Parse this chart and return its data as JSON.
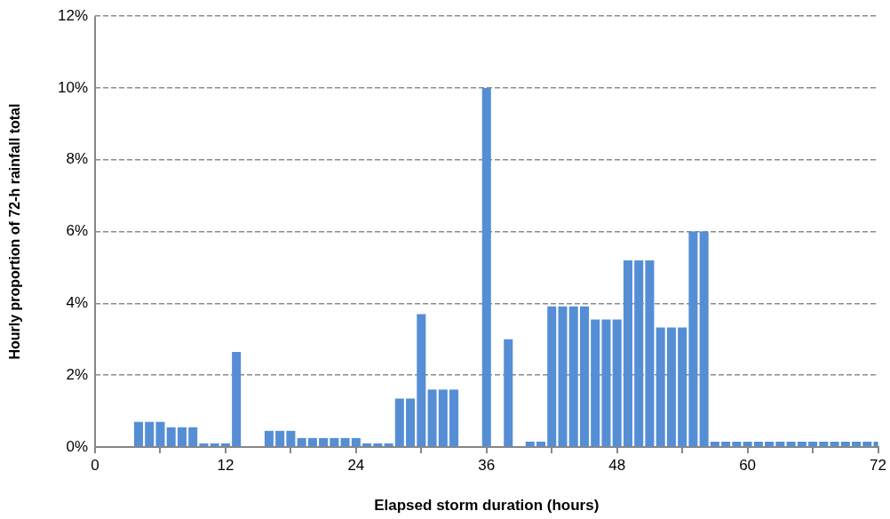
{
  "chart_data": {
    "type": "bar",
    "xlabel": "Elapsed storm duration (hours)",
    "ylabel": "Hourly proportion of 72-h rainfall total",
    "x": [
      1,
      2,
      3,
      4,
      5,
      6,
      7,
      8,
      9,
      10,
      11,
      12,
      13,
      14,
      15,
      16,
      17,
      18,
      19,
      20,
      21,
      22,
      23,
      24,
      25,
      26,
      27,
      28,
      29,
      30,
      31,
      32,
      33,
      34,
      35,
      36,
      37,
      38,
      39,
      40,
      41,
      42,
      43,
      44,
      45,
      46,
      47,
      48,
      49,
      50,
      51,
      52,
      53,
      54,
      55,
      56,
      57,
      58,
      59,
      60,
      61,
      62,
      63,
      64,
      65,
      66,
      67,
      68,
      69,
      70,
      71,
      72
    ],
    "values": [
      0,
      0,
      0,
      0.7,
      0.7,
      0.7,
      0.55,
      0.55,
      0.55,
      0.1,
      0.1,
      0.1,
      2.65,
      0,
      0,
      0.45,
      0.45,
      0.45,
      0.25,
      0.25,
      0.25,
      0.25,
      0.25,
      0.25,
      0.1,
      0.1,
      0.1,
      1.35,
      1.35,
      3.7,
      1.6,
      1.6,
      1.6,
      0,
      0,
      10,
      0,
      3,
      0,
      0.15,
      0.15,
      3.92,
      3.92,
      3.92,
      3.92,
      3.55,
      3.55,
      3.55,
      5.2,
      5.2,
      5.2,
      3.33,
      3.33,
      3.33,
      6,
      6,
      0.15,
      0.15,
      0.15,
      0.15,
      0.15,
      0.15,
      0.15,
      0.15,
      0.15,
      0.15,
      0.15,
      0.15,
      0.15,
      0.15,
      0.15,
      0.15
    ],
    "color": "#558ed5",
    "xlim": [
      0,
      72
    ],
    "xticks": [
      0,
      {
        "value": 6,
        "label": null
      },
      12,
      {
        "value": 18,
        "label": null
      },
      24,
      {
        "value": 30,
        "label": null
      },
      36,
      {
        "value": 42,
        "label": null
      },
      48,
      {
        "value": 54,
        "label": null
      },
      60,
      {
        "value": 66,
        "label": null
      },
      72
    ],
    "ylim": [
      0,
      12
    ],
    "yticks": [
      {
        "value": 0,
        "label": "0%"
      },
      {
        "value": 2,
        "label": "2%"
      },
      {
        "value": 4,
        "label": "4%"
      },
      {
        "value": 6,
        "label": "6%"
      },
      {
        "value": 8,
        "label": "8%"
      },
      {
        "value": 10,
        "label": "10%"
      },
      {
        "value": 12,
        "label": "12%"
      }
    ],
    "grid": "y"
  }
}
